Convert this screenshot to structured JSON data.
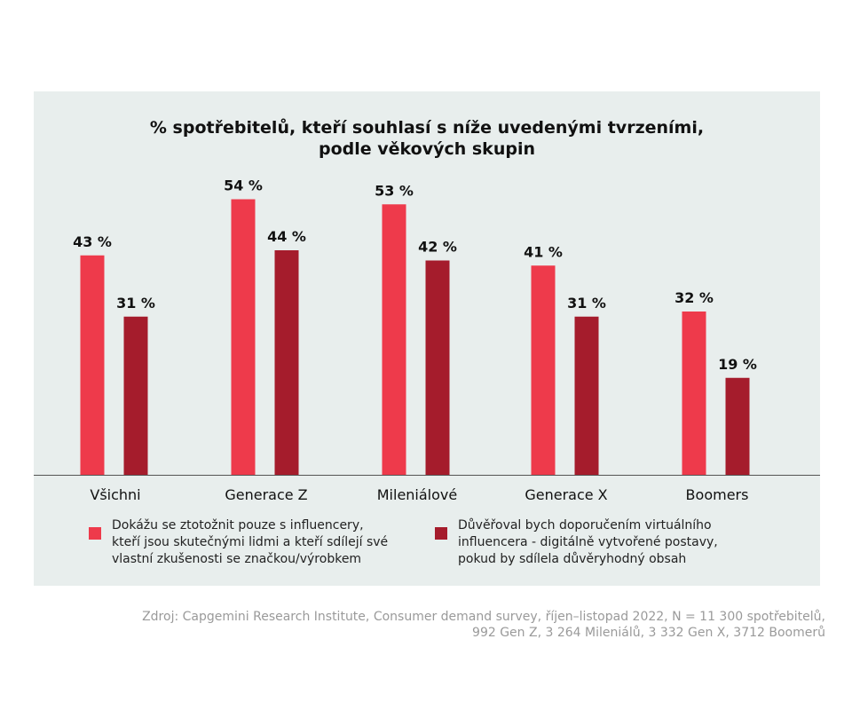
{
  "chart_data": {
    "type": "bar",
    "title_lines": [
      "% spotřebitelů, kteří souhlasí s níže uvedenými tvrzeními,",
      "podle věkových skupin"
    ],
    "xlabel": "",
    "ylabel": "",
    "ylim": [
      0,
      60
    ],
    "grid": false,
    "legend_placement": "bottom",
    "value_suffix": " %",
    "categories": [
      "Všichni",
      "Generace Z",
      "Mileniálové",
      "Generace X",
      "Boomers"
    ],
    "series": [
      {
        "name_lines": [
          "Dokážu se ztotožnit pouze s influencery,",
          "kteří jsou skutečnými lidmi a kteří sdílejí své",
          "vlastní zkušenosti se značkou/výrobkem"
        ],
        "color": "#ee3a4b",
        "values": [
          43,
          54,
          53,
          41,
          32
        ]
      },
      {
        "name_lines": [
          "Důvěřoval bych doporučením virtuálního",
          "influencera - digitálně vytvořené postavy,",
          "pokud by sdílela důvěryhodný obsah"
        ],
        "color": "#a51c2c",
        "values": [
          31,
          44,
          42,
          31,
          19
        ]
      }
    ]
  },
  "source_lines": [
    "Zdroj: Capgemini Research Institute, Consumer demand survey, říjen–listopad 2022, N = 11 300 spotřebitelů,",
    "992 Gen Z, 3 264 Mileniálů, 3 332 Gen X, 3712 Boomerů"
  ],
  "colors": {
    "panel_background": "#e8eeed",
    "axis": "#555555",
    "source_text": "#9a9a9a"
  }
}
